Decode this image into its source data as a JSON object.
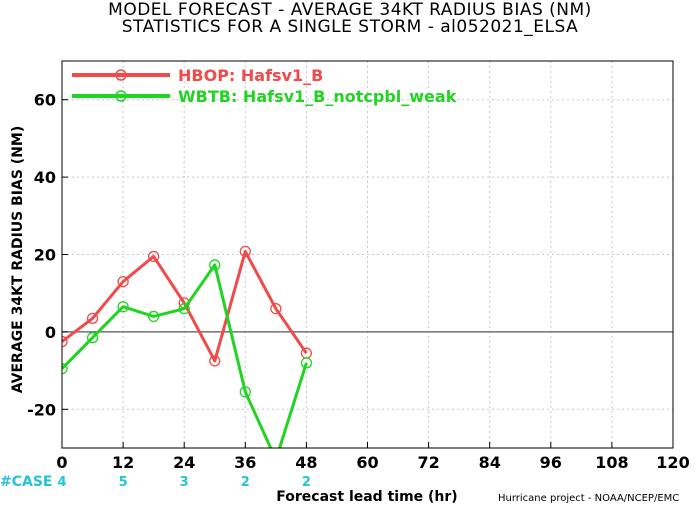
{
  "header": {
    "title_line1": "MODEL FORECAST - AVERAGE 34KT RADIUS BIAS (NM)",
    "title_line2": "STATISTICS FOR A SINGLE STORM - al052021_ELSA"
  },
  "footer": {
    "case_title": "#CASE",
    "credit": "Hurricane project - NOAA/NCEP/EMC"
  },
  "colors": {
    "hbop": "#f04a4a",
    "wbtb": "#22d422",
    "case": "#22c4d6",
    "zero_line": "#555555",
    "grid": "#c8c8c8"
  },
  "chart_data": {
    "type": "line",
    "title": "MODEL FORECAST - AVERAGE 34KT RADIUS BIAS (NM)",
    "subtitle": "STATISTICS FOR A SINGLE STORM - al052021_ELSA",
    "xlabel": "Forecast lead time (hr)",
    "ylabel": "AVERAGE 34KT RADIUS BIAS (NM)",
    "xlim": [
      0,
      120
    ],
    "ylim": [
      -30,
      70
    ],
    "xticks": [
      0,
      12,
      24,
      36,
      48,
      60,
      72,
      84,
      96,
      108,
      120
    ],
    "xtick_labels": [
      "0",
      "12",
      "24",
      "36",
      "48",
      "60",
      "72",
      "84",
      "96",
      "108",
      "120"
    ],
    "yticks": [
      -20,
      0,
      20,
      40,
      60
    ],
    "ytick_labels": [
      "-20",
      "0",
      "20",
      "40",
      "60"
    ],
    "grid": true,
    "legend_position": "top-left",
    "series": [
      {
        "name": "HBOP: Hafsv1_B",
        "color": "#f04a4a",
        "x": [
          0,
          6,
          12,
          18,
          24,
          30,
          36,
          42,
          48
        ],
        "y": [
          -2.5,
          3.5,
          13,
          19.5,
          7.5,
          -7.5,
          20.8,
          6,
          -5.5
        ]
      },
      {
        "name": "WBTB: Hafsv1_B_notcpbl_weak",
        "color": "#22d422",
        "x": [
          0,
          6,
          12,
          18,
          24,
          30,
          36,
          42,
          48
        ],
        "y": [
          -9.5,
          -1.5,
          6.5,
          4,
          6,
          17.3,
          -15.5,
          -33,
          -8
        ]
      }
    ],
    "cases": {
      "x": [
        0,
        12,
        24,
        36,
        48
      ],
      "values": [
        "4",
        "5",
        "3",
        "2",
        "2"
      ]
    }
  }
}
